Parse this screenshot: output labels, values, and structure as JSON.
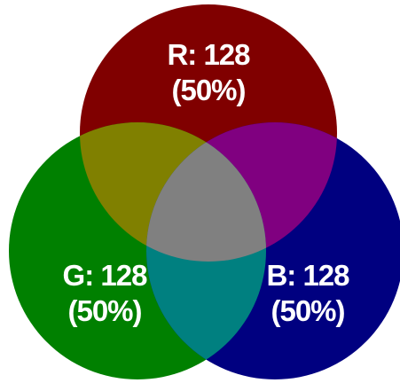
{
  "channels": {
    "red": {
      "line1": "R: 128",
      "line2": "(50%)",
      "color": "#800000"
    },
    "green": {
      "line1": "G: 128",
      "line2": "(50%)",
      "color": "#008000"
    },
    "blue": {
      "line1": "B: 128",
      "line2": "(50%)",
      "color": "#000080"
    }
  },
  "overlaps": {
    "red_green": "#808000",
    "red_blue": "#800080",
    "green_blue": "#008080",
    "all_three": "#808080"
  }
}
